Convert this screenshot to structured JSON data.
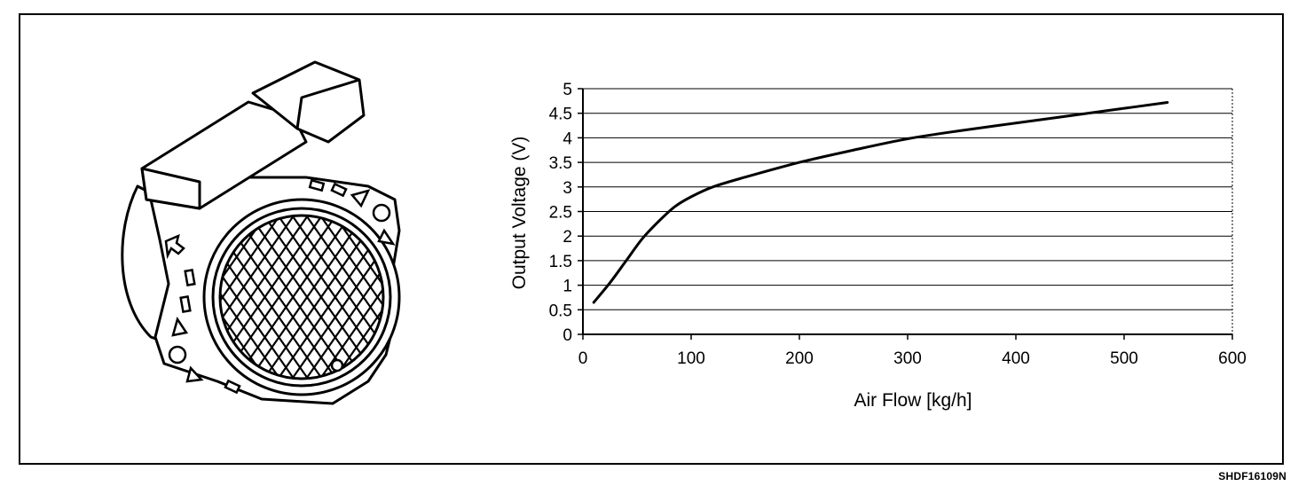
{
  "figure_code": "SHDF16109N",
  "illustration": {
    "icon": "mass-air-flow-sensor-icon"
  },
  "chart_data": {
    "type": "line",
    "title": "",
    "xlabel": "Air Flow [kg/h]",
    "ylabel": "Output Voltage (V)",
    "xlim": [
      0,
      600
    ],
    "ylim": [
      0,
      5
    ],
    "x_ticks": [
      "0",
      "100",
      "200",
      "300",
      "400",
      "500",
      "600"
    ],
    "y_ticks": [
      "0",
      "0.5",
      "1",
      "1.5",
      "2",
      "2.5",
      "3",
      "3.5",
      "4",
      "4.5",
      "5"
    ],
    "grid": "horizontal",
    "legend": "none",
    "series": [
      {
        "x": [
          10,
          25,
          40,
          55,
          70,
          85,
          100,
          120,
          150,
          200,
          250,
          300,
          350,
          400,
          450,
          500,
          540
        ],
        "y": [
          0.65,
          1.05,
          1.5,
          1.95,
          2.3,
          2.6,
          2.8,
          3.0,
          3.2,
          3.5,
          3.75,
          3.98,
          4.15,
          4.3,
          4.45,
          4.6,
          4.72
        ]
      }
    ]
  }
}
